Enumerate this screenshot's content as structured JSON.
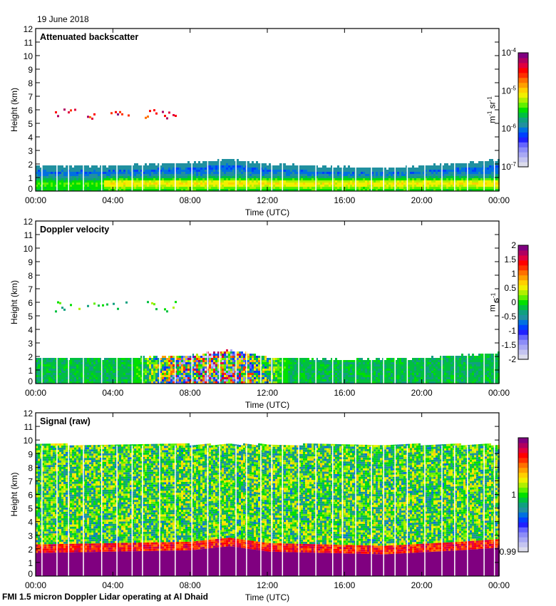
{
  "header": {
    "date": "19 June 2018"
  },
  "footer": {
    "caption": "FMI 1.5 micron Doppler Lidar operating at Al Dhaid"
  },
  "chart_data": [
    {
      "type": "heatmap",
      "title": "Attenuated backscatter",
      "xlabel": "Time (UTC)",
      "ylabel": "Height (km)",
      "xticks": [
        "00:00",
        "04:00",
        "08:00",
        "12:00",
        "16:00",
        "20:00",
        "00:00"
      ],
      "xlim_hours": [
        0,
        24
      ],
      "ylim": [
        0,
        12
      ],
      "yticks": [
        0,
        1,
        2,
        3,
        4,
        5,
        6,
        7,
        8,
        9,
        10,
        11,
        12
      ],
      "colorbar": {
        "label": "m-1 sr-1",
        "label_parts": [
          "m",
          "-1",
          " sr",
          "-1"
        ],
        "scale": "log",
        "range": [
          1e-07,
          0.0001
        ],
        "ticks": [
          {
            "base": "10",
            "exp": "-4",
            "value": 0.0001
          },
          {
            "base": "10",
            "exp": "-5",
            "value": 1e-05
          },
          {
            "base": "10",
            "exp": "-6",
            "value": 1e-06
          },
          {
            "base": "10",
            "exp": "-7",
            "value": 1e-07
          }
        ]
      },
      "features": {
        "boundary_layer_top_km": [
          [
            0,
            1.8
          ],
          [
            4,
            1.8
          ],
          [
            8,
            2.0
          ],
          [
            10,
            2.3
          ],
          [
            12,
            1.9
          ],
          [
            16,
            1.7
          ],
          [
            18,
            1.6
          ],
          [
            20,
            1.8
          ],
          [
            22,
            2.0
          ],
          [
            24,
            2.2
          ]
        ],
        "cloud_layer": {
          "height_km": [
            5.4,
            6.1
          ],
          "time_hours": [
            [
              0.6,
              4.8
            ],
            [
              5.6,
              7.3
            ]
          ]
        },
        "aerosol_max_layer_km": [
          0.2,
          0.9
        ]
      }
    },
    {
      "type": "heatmap",
      "title": "Doppler velocity",
      "xlabel": "Time (UTC)",
      "ylabel": "Height (km)",
      "xticks": [
        "00:00",
        "04:00",
        "08:00",
        "12:00",
        "16:00",
        "20:00",
        "00:00"
      ],
      "xlim_hours": [
        0,
        24
      ],
      "ylim": [
        0,
        12
      ],
      "yticks": [
        0,
        1,
        2,
        3,
        4,
        5,
        6,
        7,
        8,
        9,
        10,
        11,
        12
      ],
      "colorbar": {
        "label_parts": [
          "m",
          " s",
          "-1"
        ],
        "scale": "linear",
        "range": [
          -2,
          2
        ],
        "ticks": [
          "2",
          "1.5",
          "1",
          "0.5",
          "0",
          "-0.5",
          "-1",
          "-1.5",
          "-2"
        ]
      },
      "features": {
        "turbulent_period_hours": [
          5,
          13
        ],
        "boundary_layer_top_km": [
          [
            0,
            1.8
          ],
          [
            4,
            1.8
          ],
          [
            8,
            2.0
          ],
          [
            10,
            2.4
          ],
          [
            12,
            1.9
          ],
          [
            16,
            1.7
          ],
          [
            20,
            1.8
          ],
          [
            24,
            2.2
          ]
        ]
      }
    },
    {
      "type": "heatmap",
      "title": "Signal (raw)",
      "xlabel": "Time (UTC)",
      "ylabel": "Height (km)",
      "xticks": [
        "00:00",
        "04:00",
        "08:00",
        "12:00",
        "16:00",
        "20:00",
        "00:00"
      ],
      "xlim_hours": [
        0,
        24
      ],
      "ylim": [
        0,
        12
      ],
      "yticks": [
        0,
        1,
        2,
        3,
        4,
        5,
        6,
        7,
        8,
        9,
        10,
        11,
        12
      ],
      "colorbar": {
        "scale": "linear",
        "range": [
          0.99,
          1.01
        ],
        "ticks": [
          "1",
          "0.99"
        ]
      },
      "features": {
        "data_top_km": 9.6,
        "saturated_layer_top_km": [
          [
            0,
            1.7
          ],
          [
            8,
            1.9
          ],
          [
            10,
            2.2
          ],
          [
            12,
            1.8
          ],
          [
            18,
            1.6
          ],
          [
            22,
            1.9
          ],
          [
            24,
            2.1
          ]
        ]
      }
    }
  ]
}
